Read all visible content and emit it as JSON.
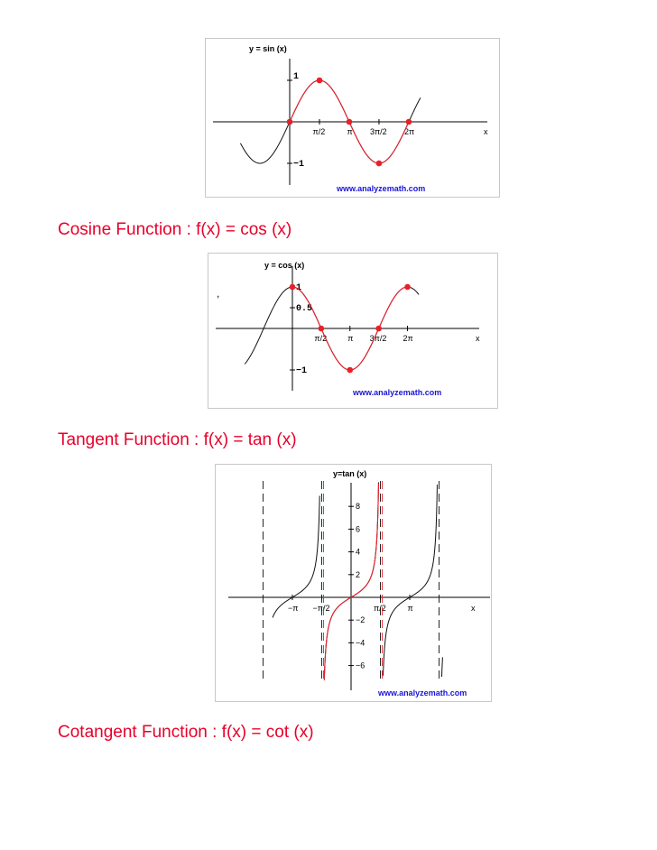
{
  "colors": {
    "heading": "#e8002a",
    "curve_black": "#111111",
    "curve_red": "#e8202a",
    "watermark": "#1a14d8",
    "frame": "#c8c8c8"
  },
  "headings": {
    "cosine": "Cosine Function : f(x) = cos (x)",
    "tangent": "Tangent Function : f(x) = tan (x)",
    "cotangent": "Cotangent Function : f(x) = cot (x)"
  },
  "stray_mark": ",",
  "chart_data": [
    {
      "type": "line",
      "title": "y = sin (x)",
      "xlabel": "x",
      "x_ticks": [
        "π/2",
        "π",
        "3π/2",
        "2π"
      ],
      "y_ticks": [
        "1",
        "−1"
      ],
      "xlim": [
        -2.6,
        6.9
      ],
      "ylim": [
        -1.4,
        1.6
      ],
      "grid": false,
      "series": [
        {
          "function": "sin",
          "color": "black",
          "domain": [
            -2.6,
            6.9
          ]
        },
        {
          "function": "sin",
          "color": "red",
          "domain": [
            0,
            6.2832
          ]
        }
      ],
      "highlighted_points": [
        [
          0,
          0
        ],
        [
          1.5708,
          1
        ],
        [
          3.1416,
          0
        ],
        [
          4.7124,
          -1
        ],
        [
          6.2832,
          0
        ]
      ],
      "watermark": "www.analyzemath.com"
    },
    {
      "type": "line",
      "title": "y = cos (x)",
      "xlabel": "x",
      "x_ticks": [
        "π/2",
        "π",
        "3π/2",
        "2π"
      ],
      "y_ticks": [
        "1",
        "0.5",
        "−1"
      ],
      "xlim": [
        -2.6,
        6.9
      ],
      "ylim": [
        -1.4,
        1.6
      ],
      "grid": false,
      "series": [
        {
          "function": "cos",
          "color": "black",
          "domain": [
            -2.6,
            6.9
          ]
        },
        {
          "function": "cos",
          "color": "red",
          "domain": [
            0,
            6.2832
          ]
        }
      ],
      "highlighted_points": [
        [
          0,
          1
        ],
        [
          1.5708,
          0
        ],
        [
          3.1416,
          -1
        ],
        [
          4.7124,
          0
        ],
        [
          6.2832,
          1
        ]
      ],
      "watermark": "www.analyzemath.com"
    },
    {
      "type": "line",
      "title": "y=tan (x)",
      "xlabel": "x",
      "x_ticks": [
        "−π",
        "−π/2",
        "π/2",
        "π"
      ],
      "y_ticks": [
        "8",
        "6",
        "4",
        "2",
        "−2",
        "−4",
        "−6"
      ],
      "xlim": [
        -4.2,
        4.9
      ],
      "ylim": [
        -7.5,
        9.2
      ],
      "grid": false,
      "series": [
        {
          "function": "tan",
          "color": "black",
          "domain": [
            -4.2,
            4.9
          ]
        },
        {
          "function": "tan",
          "color": "red",
          "domain": [
            -1.5708,
            1.5708
          ]
        }
      ],
      "asymptotes": [
        -4.7124,
        -1.5708,
        1.5708,
        4.7124
      ],
      "watermark": "www.analyzemath.com"
    }
  ]
}
